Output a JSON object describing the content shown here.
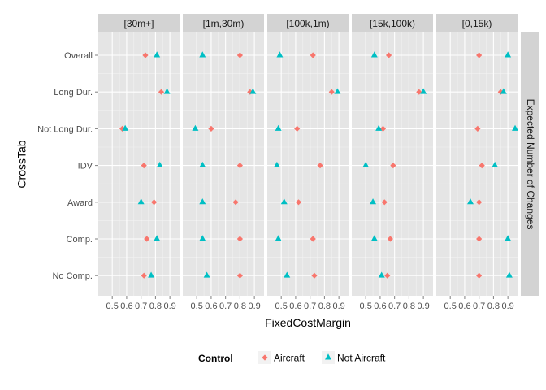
{
  "chart_data": {
    "type": "scatter",
    "xlabel": "FixedCostMargin",
    "ylabel": "CrossTab",
    "facet_label": "Expected Number of Changes",
    "panels": [
      "[30m+]",
      "[1m,30m)",
      "[100k,1m)",
      "[15k,100k)",
      "[0,15k)"
    ],
    "categories": [
      "Overall",
      "Long Dur.",
      "Not Long Dur.",
      "IDV",
      "Award",
      "Comp.",
      "No Comp."
    ],
    "xlim": [
      0.42,
      0.95
    ],
    "xticks": [
      0.5,
      0.6,
      0.7,
      0.8,
      0.9
    ],
    "xtick_labels": [
      "0.5",
      "0.6",
      "0.7",
      "0.8",
      "0.9"
    ],
    "grid": true,
    "legend": {
      "title": "Control",
      "position": "bottom",
      "entries": [
        {
          "label": "Aircraft",
          "color": "#F8766D",
          "shape": "diamond"
        },
        {
          "label": "Not Aircraft",
          "color": "#00BFC4",
          "shape": "triangle"
        }
      ]
    },
    "series": [
      {
        "name": "Aircraft",
        "color": "#F8766D",
        "values": [
          [
            0.73,
            0.84,
            0.57,
            0.72,
            0.79,
            0.74,
            0.72
          ],
          [
            0.8,
            0.87,
            0.6,
            0.8,
            0.77,
            0.8,
            0.8
          ],
          [
            0.72,
            0.85,
            0.61,
            0.77,
            0.62,
            0.72,
            0.73
          ],
          [
            0.66,
            0.87,
            0.62,
            0.69,
            0.63,
            0.67,
            0.65
          ],
          [
            0.7,
            0.85,
            0.69,
            0.72,
            0.7,
            0.7,
            0.7
          ]
        ]
      },
      {
        "name": "Not Aircraft",
        "color": "#00BFC4",
        "values": [
          [
            0.81,
            0.88,
            0.59,
            0.83,
            0.7,
            0.81,
            0.77
          ],
          [
            0.54,
            0.89,
            0.49,
            0.54,
            0.54,
            0.54,
            0.57
          ],
          [
            0.49,
            0.89,
            0.48,
            0.47,
            0.52,
            0.48,
            0.54
          ],
          [
            0.56,
            0.9,
            0.59,
            0.5,
            0.55,
            0.56,
            0.61
          ],
          [
            0.9,
            0.87,
            0.95,
            0.81,
            0.64,
            0.9,
            0.91
          ]
        ]
      }
    ]
  }
}
